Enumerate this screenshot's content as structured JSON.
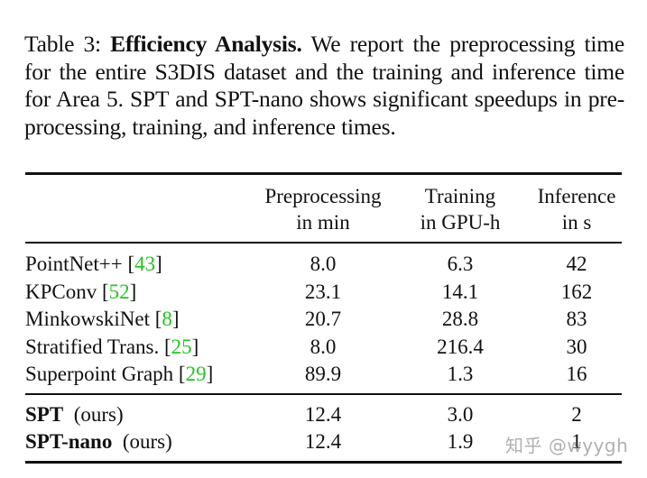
{
  "caption": {
    "label": "Table 3:",
    "title": "Efficiency Analysis.",
    "body": "We report the preprocessing time for the entire S3DIS dataset and the training and inference time for Area 5. SPT and SPT-nano shows significant speedups in pre-processing, training, and inference times."
  },
  "table": {
    "headers": [
      {
        "line1": "",
        "line2": ""
      },
      {
        "line1": "Preprocessing",
        "line2": "in min"
      },
      {
        "line1": "Training",
        "line2": "in GPU-h"
      },
      {
        "line1": "Inference",
        "line2": "in s"
      }
    ],
    "baselines": [
      {
        "name": "PointNet++",
        "cite": "43",
        "preprocessing": "8.0",
        "training": "6.3",
        "inference": "42"
      },
      {
        "name": "KPConv",
        "cite": "52",
        "preprocessing": "23.1",
        "training": "14.1",
        "inference": "162"
      },
      {
        "name": "MinkowskiNet",
        "cite": "8",
        "preprocessing": "20.7",
        "training": "28.8",
        "inference": "83"
      },
      {
        "name": "Stratified Trans.",
        "cite": "25",
        "preprocessing": "8.0",
        "training": "216.4",
        "inference": "30"
      },
      {
        "name": "Superpoint Graph",
        "cite": "29",
        "preprocessing": "89.9",
        "training": "1.3",
        "inference": "16"
      }
    ],
    "ours": [
      {
        "name": "SPT",
        "suffix": "(ours)",
        "preprocessing": "12.4",
        "training": "3.0",
        "inference": "2"
      },
      {
        "name": "SPT-nano",
        "suffix": "(ours)",
        "preprocessing": "12.4",
        "training": "1.9",
        "inference": "1"
      }
    ]
  },
  "colors": {
    "citation": "#22c422",
    "text": "#111111"
  },
  "watermark": "知乎 @wyygh"
}
